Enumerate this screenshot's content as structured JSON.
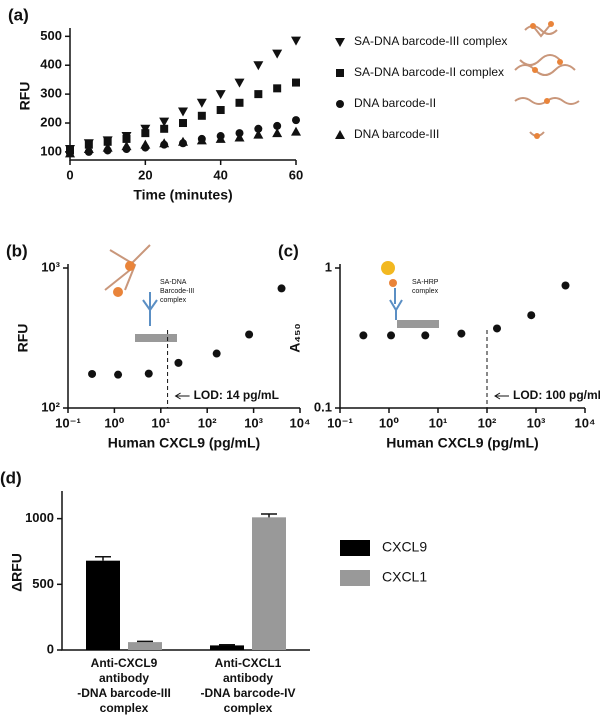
{
  "chart_data": [
    {
      "type": "scatter",
      "panel": "(a)",
      "x_label": "Time (minutes)",
      "y_label": "RFU",
      "xlim": [
        0,
        60
      ],
      "xticks": [
        0,
        20,
        40,
        60
      ],
      "ylim": [
        72,
        515
      ],
      "yticks": [
        100,
        200,
        300,
        400,
        500
      ],
      "series": [
        {
          "name": "SA-DNA barcode-III complex",
          "marker": "triangle-down",
          "color": "#111111",
          "x": [
            0,
            5,
            10,
            15,
            20,
            25,
            30,
            35,
            40,
            45,
            50,
            55,
            60
          ],
          "values": [
            110,
            130,
            140,
            155,
            180,
            205,
            240,
            270,
            300,
            340,
            400,
            440,
            485
          ]
        },
        {
          "name": "SA-DNA barcode-II complex",
          "marker": "square",
          "color": "#111111",
          "x": [
            0,
            5,
            10,
            15,
            20,
            25,
            30,
            35,
            40,
            45,
            50,
            55,
            60
          ],
          "values": [
            105,
            125,
            135,
            145,
            165,
            180,
            200,
            225,
            245,
            270,
            300,
            320,
            340
          ]
        },
        {
          "name": "DNA barcode-II",
          "marker": "circle",
          "color": "#111111",
          "x": [
            0,
            5,
            10,
            15,
            20,
            25,
            30,
            35,
            40,
            45,
            50,
            55,
            60
          ],
          "values": [
            100,
            100,
            105,
            110,
            115,
            125,
            130,
            145,
            155,
            165,
            180,
            190,
            210
          ]
        },
        {
          "name": "DNA barcode-III",
          "marker": "triangle-up",
          "color": "#111111",
          "x": [
            0,
            5,
            10,
            15,
            20,
            25,
            30,
            35,
            40,
            45,
            50,
            55,
            60
          ],
          "values": [
            95,
            110,
            115,
            120,
            125,
            130,
            135,
            140,
            145,
            150,
            160,
            165,
            170
          ]
        }
      ]
    },
    {
      "type": "scatter",
      "panel": "(b)",
      "x_label": "Human CXCL9 (pg/mL)",
      "y_label": "RFU",
      "xlog": true,
      "ylog": true,
      "xlim": [
        0.1,
        10000
      ],
      "xticks": [
        {
          "value": 0.1,
          "label": "10⁻¹"
        },
        {
          "value": 1,
          "label": "10⁰"
        },
        {
          "value": 10,
          "label": "10¹"
        },
        {
          "value": 100,
          "label": "10²"
        },
        {
          "value": 1000,
          "label": "10³"
        },
        {
          "value": 10000,
          "label": "10⁴"
        }
      ],
      "ylim": [
        100,
        1000
      ],
      "yticks": [
        {
          "value": 100,
          "label": "10²"
        },
        {
          "value": 1000,
          "label": "10³"
        }
      ],
      "schematic_label": [
        "SA-DNA",
        "Barcode-III",
        "complex"
      ],
      "vlines": [
        {
          "x": 14,
          "label": "LOD: 14 pg/mL"
        }
      ],
      "series": [
        {
          "marker": "circle",
          "color": "#111111",
          "x": [
            0.33,
            1.2,
            5.5,
            24,
            160,
            800,
            4000
          ],
          "values": [
            175,
            173,
            176,
            210,
            245,
            335,
            715
          ]
        }
      ]
    },
    {
      "type": "scatter",
      "panel": "(c)",
      "x_label": "Human CXCL9 (pg/mL)",
      "y_label": "A₄₅₀",
      "xlog": true,
      "ylog": true,
      "xlim": [
        0.1,
        10000
      ],
      "xticks": [
        {
          "value": 0.1,
          "label": "10⁻¹"
        },
        {
          "value": 1,
          "label": "10⁰"
        },
        {
          "value": 10,
          "label": "10¹"
        },
        {
          "value": 100,
          "label": "10²"
        },
        {
          "value": 1000,
          "label": "10³"
        },
        {
          "value": 10000,
          "label": "10⁴"
        }
      ],
      "ylim": [
        0.1,
        1
      ],
      "yticks": [
        0.1,
        1
      ],
      "schematic_label": [
        "SA-HRP",
        "complex"
      ],
      "vlines": [
        {
          "x": 100,
          "label": "LOD: 100 pg/mL"
        }
      ],
      "series": [
        {
          "marker": "circle",
          "color": "#111111",
          "x": [
            0.3,
            1.1,
            5.5,
            30,
            160,
            800,
            4000
          ],
          "values": [
            0.33,
            0.33,
            0.33,
            0.34,
            0.37,
            0.46,
            0.75
          ]
        }
      ]
    },
    {
      "type": "bar",
      "panel": "(d)",
      "y_label": "ΔRFU",
      "categories": [
        [
          "Anti-CXCL9",
          "antibody",
          "-DNA barcode-III",
          "complex"
        ],
        [
          "Anti-CXCL1",
          "antibody",
          "-DNA barcode-IV",
          "complex"
        ]
      ],
      "ylim": [
        0,
        1180
      ],
      "yticks": [
        0,
        500,
        1000
      ],
      "series": [
        {
          "name": "CXCL9",
          "color": "#000000",
          "values": [
            680,
            35
          ],
          "errors": [
            30,
            5
          ]
        },
        {
          "name": "CXCL1",
          "color": "#999999",
          "values": [
            60,
            1010
          ],
          "errors": [
            6,
            25
          ]
        }
      ]
    }
  ]
}
